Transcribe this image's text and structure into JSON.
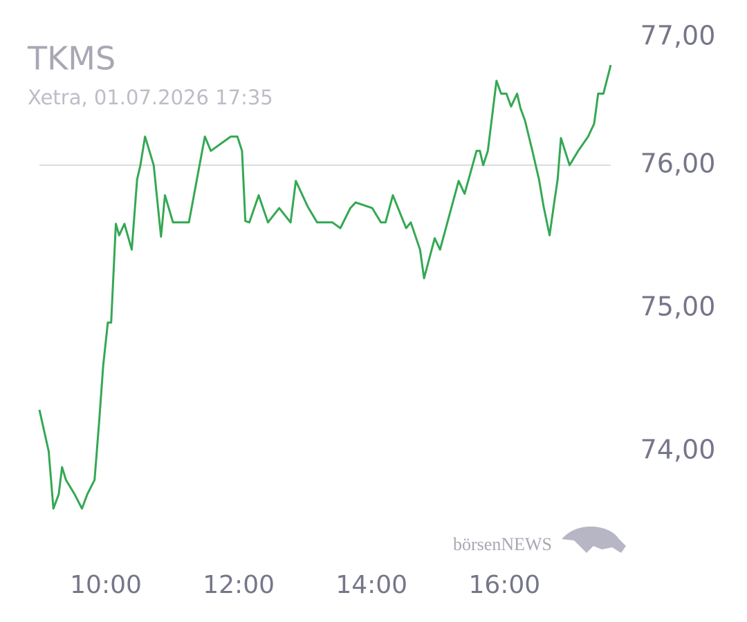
{
  "chart_data": {
    "type": "line",
    "title": "TKMS",
    "subtitle": "Xetra, 01.07.2026 17:35",
    "watermark": "börsenNEWS",
    "x": [
      9.0,
      9.14,
      9.21,
      9.29,
      9.34,
      9.4,
      9.53,
      9.64,
      9.72,
      9.83,
      9.9,
      9.96,
      10.03,
      10.08,
      10.15,
      10.2,
      10.28,
      10.39,
      10.47,
      10.52,
      10.59,
      10.72,
      10.83,
      10.89,
      11.01,
      11.25,
      11.49,
      11.58,
      11.88,
      11.98,
      12.05,
      12.1,
      12.16,
      12.3,
      12.44,
      12.61,
      12.78,
      12.86,
      13.04,
      13.18,
      13.41,
      13.53,
      13.68,
      13.76,
      14.01,
      14.14,
      14.21,
      14.32,
      14.52,
      14.59,
      14.73,
      14.79,
      14.95,
      15.03,
      15.31,
      15.4,
      15.58,
      15.63,
      15.68,
      15.75,
      15.88,
      15.95,
      16.03,
      16.1,
      16.19,
      16.24,
      16.31,
      16.42,
      16.52,
      16.59,
      16.68,
      16.74,
      16.8,
      16.85,
      16.98,
      17.11,
      17.26,
      17.35,
      17.41,
      17.49,
      17.6
    ],
    "series": [
      {
        "name": "TKMS",
        "color": "#34a853",
        "values": [
          74.29,
          74.0,
          73.6,
          73.7,
          73.89,
          73.8,
          73.7,
          73.6,
          73.7,
          73.8,
          74.21,
          74.6,
          74.9,
          74.9,
          75.59,
          75.51,
          75.59,
          75.41,
          75.9,
          76.0,
          76.2,
          76.0,
          75.5,
          75.79,
          75.6,
          75.6,
          76.2,
          76.1,
          76.2,
          76.2,
          76.1,
          75.61,
          75.6,
          75.79,
          75.6,
          75.7,
          75.6,
          75.89,
          75.71,
          75.6,
          75.6,
          75.56,
          75.7,
          75.74,
          75.7,
          75.6,
          75.6,
          75.79,
          75.56,
          75.6,
          75.41,
          75.21,
          75.49,
          75.41,
          75.89,
          75.8,
          76.1,
          76.1,
          76.0,
          76.1,
          76.59,
          76.5,
          76.5,
          76.41,
          76.5,
          76.4,
          76.31,
          76.1,
          75.9,
          75.71,
          75.51,
          75.71,
          75.9,
          76.19,
          76.0,
          76.1,
          76.2,
          76.29,
          76.5,
          76.5,
          76.7
        ]
      }
    ],
    "xlim": [
      9.0,
      17.6
    ],
    "xticks": [
      {
        "value": 10,
        "label": "10:00"
      },
      {
        "value": 12,
        "label": "12:00"
      },
      {
        "value": 14,
        "label": "14:00"
      },
      {
        "value": 16,
        "label": "16:00"
      }
    ],
    "ylim": [
      73.3,
      77.0
    ],
    "yticks": [
      {
        "value": 74,
        "label": "74,00"
      },
      {
        "value": 75,
        "label": "75,00"
      },
      {
        "value": 76,
        "label": "76,00"
      },
      {
        "value": 77,
        "label": "77,00"
      }
    ],
    "reference_line": 76
  }
}
